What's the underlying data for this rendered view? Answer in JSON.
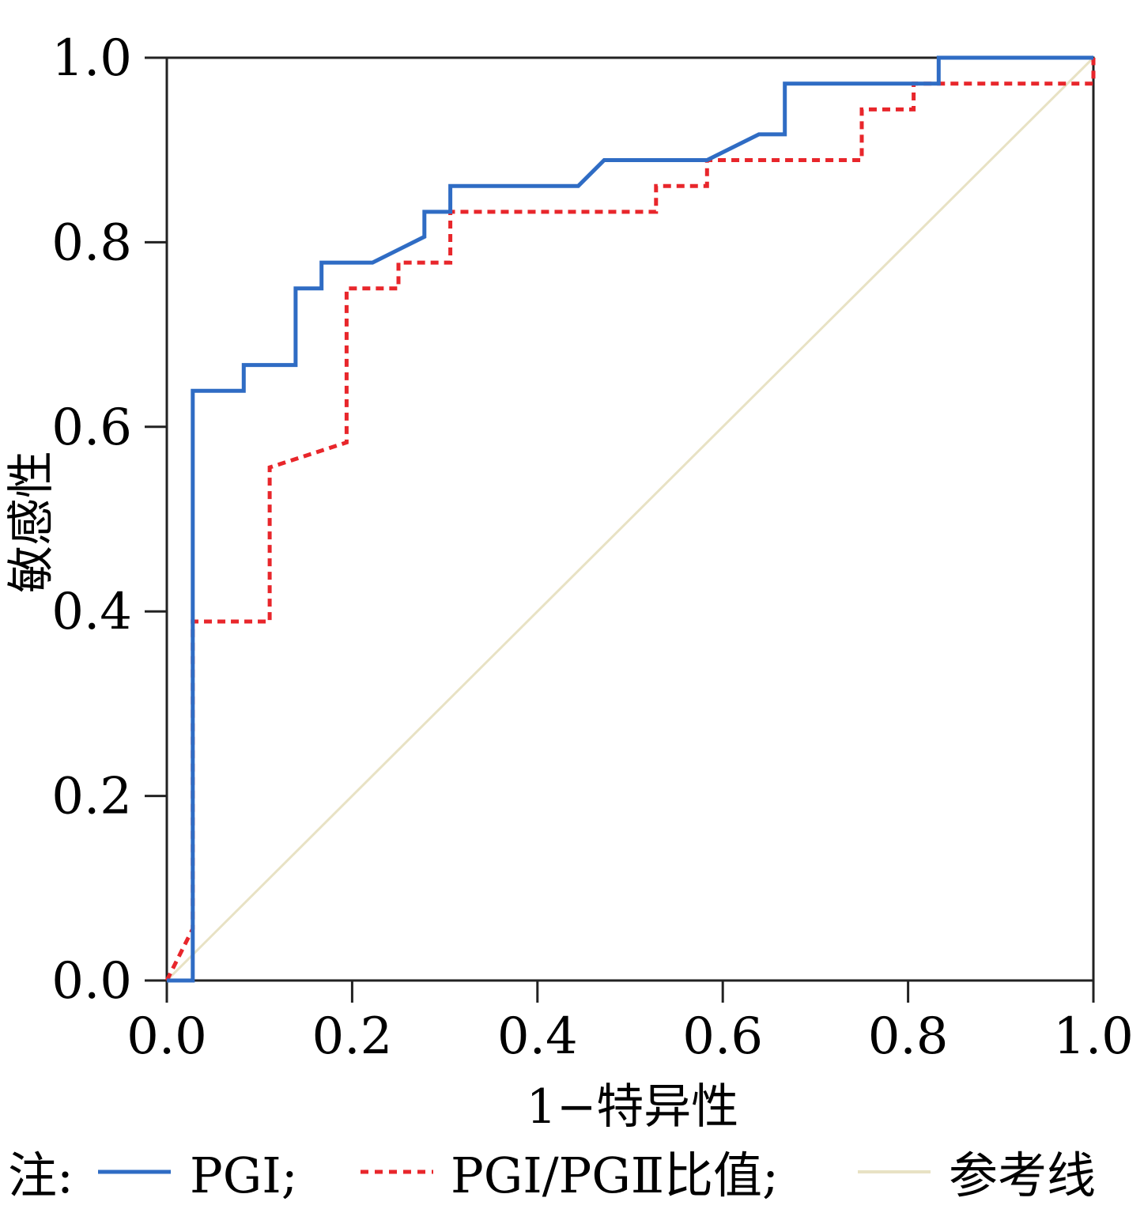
{
  "chart_data": {
    "type": "line",
    "xlabel": "1−特异性",
    "ylabel": "敏感性",
    "xlim": [
      0,
      1
    ],
    "ylim": [
      0,
      1
    ],
    "x_ticks": [
      "0.0",
      "0.2",
      "0.4",
      "0.6",
      "0.8",
      "1.0"
    ],
    "y_ticks": [
      "0.0",
      "0.2",
      "0.4",
      "0.6",
      "0.8",
      "1.0"
    ],
    "x_tick_values": [
      0,
      0.2,
      0.4,
      0.6,
      0.8,
      1.0
    ],
    "y_tick_values": [
      0,
      0.2,
      0.4,
      0.6,
      0.8,
      1.0
    ],
    "grid": false,
    "series": [
      {
        "name": "PGⅠ",
        "color": "#2f6cc4",
        "style": "solid",
        "points": [
          [
            0,
            0
          ],
          [
            0.028,
            0
          ],
          [
            0.028,
            0.639
          ],
          [
            0.083,
            0.639
          ],
          [
            0.083,
            0.667
          ],
          [
            0.139,
            0.667
          ],
          [
            0.139,
            0.75
          ],
          [
            0.167,
            0.75
          ],
          [
            0.167,
            0.778
          ],
          [
            0.222,
            0.778
          ],
          [
            0.278,
            0.806
          ],
          [
            0.278,
            0.833
          ],
          [
            0.306,
            0.833
          ],
          [
            0.306,
            0.861
          ],
          [
            0.444,
            0.861
          ],
          [
            0.472,
            0.889
          ],
          [
            0.583,
            0.889
          ],
          [
            0.639,
            0.917
          ],
          [
            0.667,
            0.917
          ],
          [
            0.667,
            0.972
          ],
          [
            0.833,
            0.972
          ],
          [
            0.833,
            1.0
          ],
          [
            1.0,
            1.0
          ]
        ]
      },
      {
        "name": "PGⅠ/PGⅡ比值",
        "color": "#e8262b",
        "style": "dashed",
        "points": [
          [
            0,
            0
          ],
          [
            0.028,
            0.056
          ],
          [
            0.028,
            0.389
          ],
          [
            0.111,
            0.389
          ],
          [
            0.111,
            0.556
          ],
          [
            0.194,
            0.583
          ],
          [
            0.194,
            0.75
          ],
          [
            0.25,
            0.75
          ],
          [
            0.25,
            0.778
          ],
          [
            0.306,
            0.778
          ],
          [
            0.306,
            0.833
          ],
          [
            0.528,
            0.833
          ],
          [
            0.528,
            0.861
          ],
          [
            0.583,
            0.861
          ],
          [
            0.583,
            0.889
          ],
          [
            0.75,
            0.889
          ],
          [
            0.75,
            0.944
          ],
          [
            0.806,
            0.944
          ],
          [
            0.806,
            0.972
          ],
          [
            1.0,
            0.972
          ],
          [
            1.0,
            1.0
          ]
        ]
      },
      {
        "name": "参考线",
        "color": "#e8e2c4",
        "style": "solid",
        "points": [
          [
            0,
            0
          ],
          [
            1,
            1
          ]
        ]
      }
    ],
    "legend": {
      "prefix": "注:",
      "placement": "bottom",
      "entries": [
        {
          "label": "PGⅠ;",
          "color": "#2f6cc4",
          "style": "solid"
        },
        {
          "label": "PGⅠ/PGⅡ比值;",
          "color": "#e8262b",
          "style": "dashed"
        },
        {
          "label": "参考线",
          "color": "#e8e2c4",
          "style": "solid"
        }
      ]
    }
  }
}
